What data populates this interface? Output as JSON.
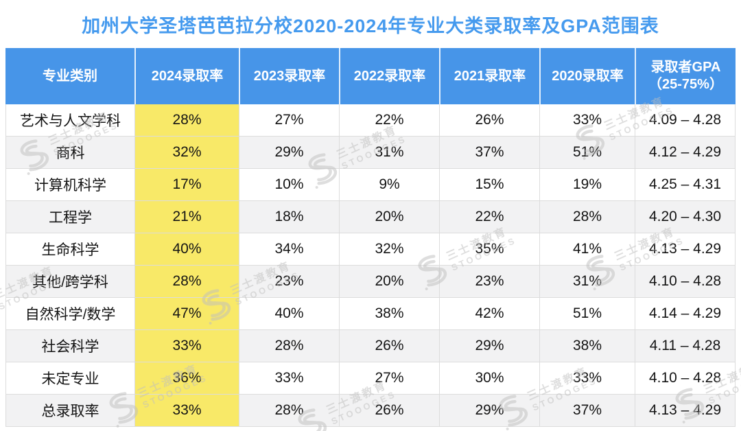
{
  "title": "加州大学圣塔芭芭拉分校2020-2024年专业大类录取率及GPA范围表",
  "watermark": {
    "logo_icon": "stooges-s-logo-icon",
    "brand_cn": "三士渡教育",
    "brand_en": "STOOOGES"
  },
  "colors": {
    "title_blue": "#459AEE",
    "header_bg": "#4795E8",
    "highlight_yellow": "#F8E968",
    "alt_row_gray": "#F2F2F3",
    "grid_line": "#DCDCDC",
    "body_text": "#141414"
  },
  "chart_data": {
    "type": "table",
    "title": "加州大学圣塔芭芭拉分校2020-2024年专业大类录取率及GPA范围表",
    "highlighted_column": "2024录取率",
    "columns": [
      "专业类别",
      "2024录取率",
      "2023录取率",
      "2022录取率",
      "2021录取率",
      "2020录取率",
      "录取者GPA\n（25-75%）"
    ],
    "rows": [
      [
        "艺术与人文学科",
        "28%",
        "27%",
        "22%",
        "26%",
        "33%",
        "4.09 – 4.28"
      ],
      [
        "商科",
        "32%",
        "29%",
        "31%",
        "37%",
        "51%",
        "4.12 – 4.29"
      ],
      [
        "计算机科学",
        "17%",
        "10%",
        "9%",
        "15%",
        "19%",
        "4.25 – 4.31"
      ],
      [
        "工程学",
        "21%",
        "18%",
        "20%",
        "22%",
        "28%",
        "4.20 – 4.30"
      ],
      [
        "生命科学",
        "40%",
        "34%",
        "32%",
        "35%",
        "41%",
        "4.13 – 4.29"
      ],
      [
        "其他/跨学科",
        "28%",
        "23%",
        "20%",
        "23%",
        "31%",
        "4.10 – 4.28"
      ],
      [
        "自然科学/数学",
        "47%",
        "40%",
        "38%",
        "42%",
        "51%",
        "4.14 – 4.29"
      ],
      [
        "社会科学",
        "33%",
        "28%",
        "26%",
        "29%",
        "38%",
        "4.11 – 4.28"
      ],
      [
        "未定专业",
        "36%",
        "33%",
        "27%",
        "30%",
        "33%",
        "4.10 – 4.28"
      ],
      [
        "总录取率",
        "33%",
        "28%",
        "26%",
        "29%",
        "37%",
        "4.13 – 4.29"
      ]
    ]
  }
}
